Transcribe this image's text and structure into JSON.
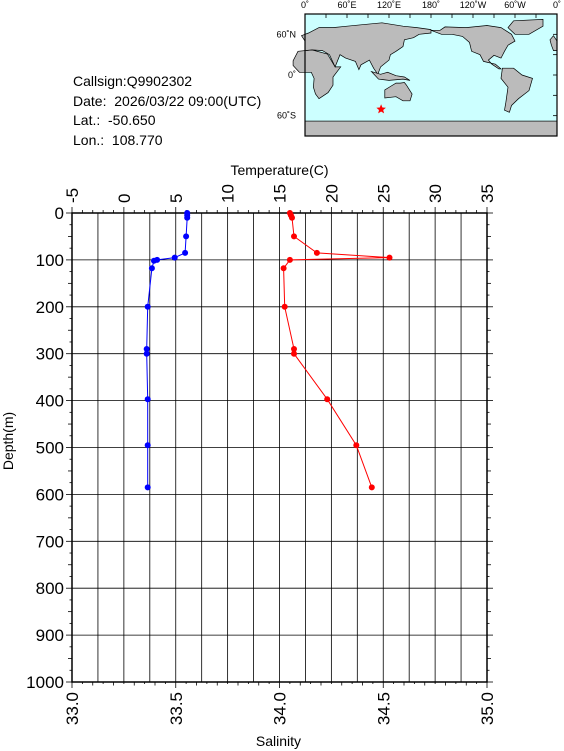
{
  "info": {
    "callsign": "Callsign:Q9902302",
    "date": "Date:  2026/03/22 09:00(UTC)",
    "lat": "Lat.:  -50.650",
    "lon": "Lon.:  108.770"
  },
  "map": {
    "top_labels": [
      "0˚",
      "60˚E",
      "120˚E",
      "180˚",
      "120˚W",
      "60˚W",
      "0˚"
    ],
    "right_labels": [
      "60˚N",
      "0˚",
      "60˚S"
    ],
    "ocean_color": "#ccffff",
    "land_color": "#bbbbbb",
    "marker_color": "#ff0000",
    "marker": {
      "lon": 108.77,
      "lat": -50.65
    }
  },
  "chart_data": {
    "type": "line",
    "ylabel": "Depth(m)",
    "ylim": [
      0,
      1000
    ],
    "y_inverted": true,
    "grid": true,
    "y_ticks": [
      "0",
      "100",
      "200",
      "300",
      "400",
      "500",
      "600",
      "700",
      "800",
      "900",
      "1000"
    ],
    "top_axis": {
      "label": "Temperature(C)",
      "range": [
        -5,
        35
      ],
      "ticks": [
        "-5",
        "0",
        "5",
        "10",
        "15",
        "20",
        "25",
        "30",
        "35"
      ]
    },
    "bottom_axis": {
      "label": "Salinity",
      "range": [
        33.0,
        35.0
      ],
      "ticks": [
        "33.0",
        "33.5",
        "34.0",
        "34.5",
        "35.0"
      ]
    },
    "series": [
      {
        "axis": "top",
        "color": "#ff0000",
        "points": [
          [
            16.0,
            0
          ],
          [
            16.1,
            5
          ],
          [
            16.2,
            10
          ],
          [
            16.4,
            50
          ],
          [
            18.6,
            85
          ],
          [
            25.6,
            95
          ],
          [
            16.0,
            100
          ],
          [
            15.4,
            118
          ],
          [
            15.5,
            200
          ],
          [
            16.4,
            290
          ],
          [
            16.4,
            300
          ],
          [
            19.6,
            397
          ],
          [
            22.4,
            495
          ],
          [
            23.9,
            585
          ]
        ]
      },
      {
        "axis": "bottom",
        "color": "#0000ff",
        "points": [
          [
            33.555,
            0
          ],
          [
            33.555,
            5
          ],
          [
            33.555,
            10
          ],
          [
            33.55,
            50
          ],
          [
            33.545,
            85
          ],
          [
            33.495,
            95
          ],
          [
            33.41,
            100
          ],
          [
            33.395,
            102
          ],
          [
            33.385,
            118
          ],
          [
            33.365,
            200
          ],
          [
            33.36,
            290
          ],
          [
            33.36,
            300
          ],
          [
            33.365,
            397
          ],
          [
            33.365,
            495
          ],
          [
            33.365,
            585
          ]
        ]
      }
    ]
  }
}
